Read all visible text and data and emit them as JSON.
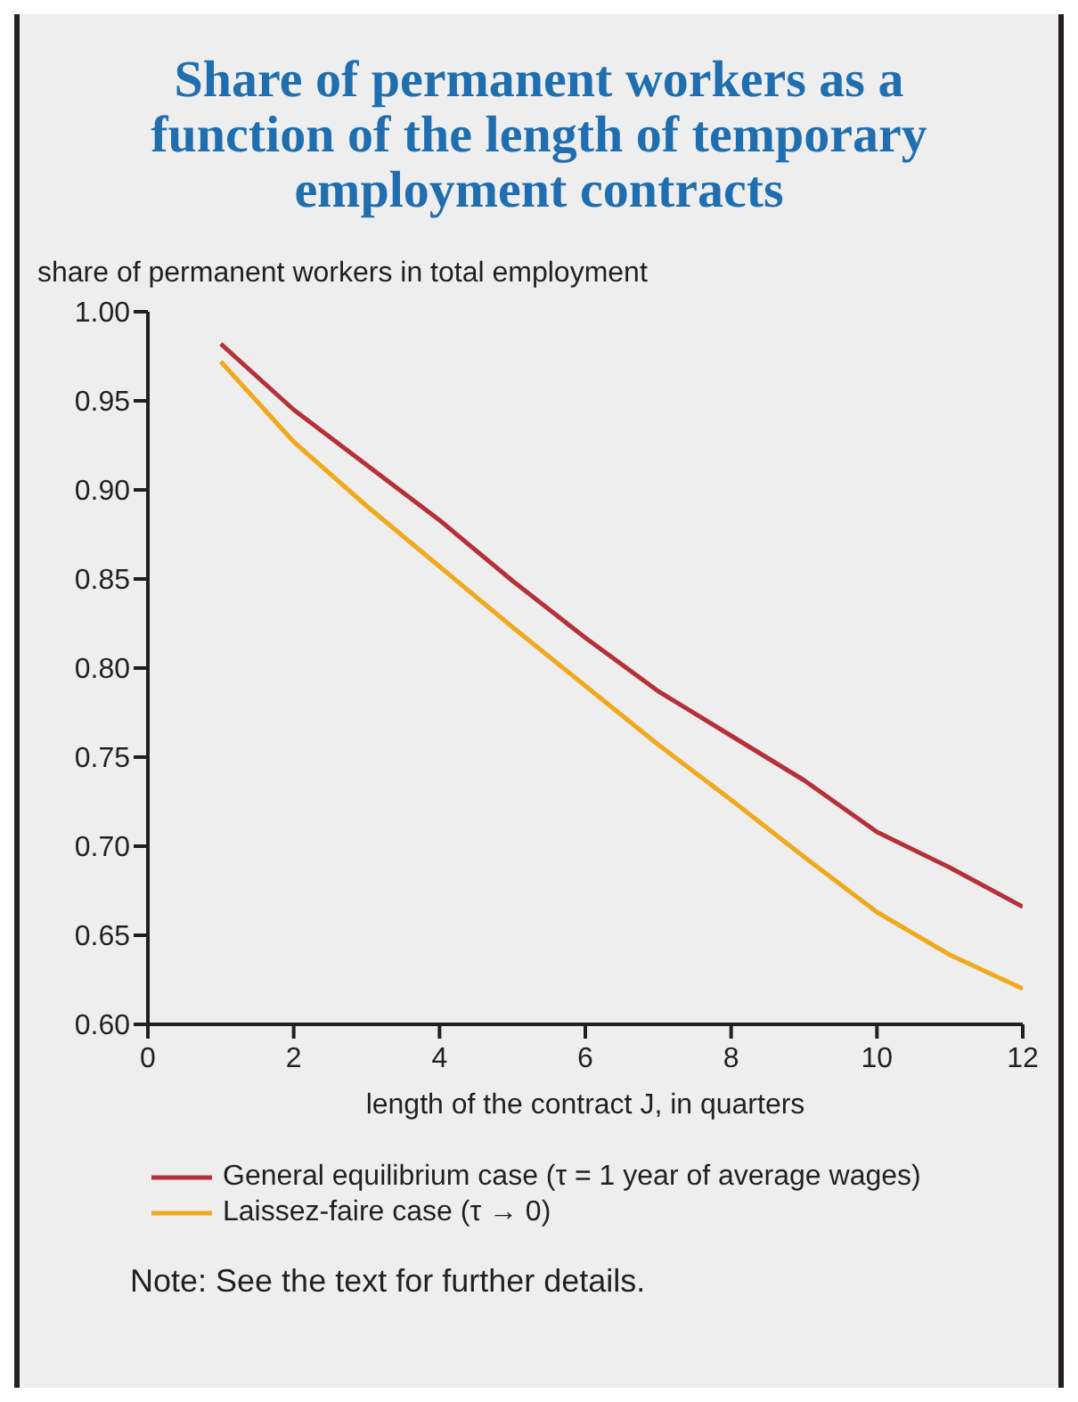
{
  "chart_data": {
    "type": "line",
    "title": "Share of permanent workers as a function of the length of temporary employment contracts",
    "ylabel": "share of permanent workers in total employment",
    "xlabel": "length of the contract J, in quarters",
    "x": [
      1,
      2,
      3,
      4,
      5,
      6,
      7,
      8,
      9,
      10,
      11,
      12
    ],
    "series": [
      {
        "name": "General equilibrium case (τ = 1 year of average wages)",
        "color": "#b5313a",
        "values": [
          0.982,
          0.945,
          0.914,
          0.883,
          0.849,
          0.817,
          0.787,
          0.762,
          0.737,
          0.708,
          0.688,
          0.666
        ]
      },
      {
        "name": "Laissez-faire case (τ → 0)",
        "color": "#f0a81c",
        "values": [
          0.972,
          0.927,
          0.891,
          0.857,
          0.823,
          0.79,
          0.757,
          0.726,
          0.694,
          0.663,
          0.639,
          0.62
        ]
      }
    ],
    "xlim": [
      0,
      12
    ],
    "xticks": [
      0,
      2,
      4,
      6,
      8,
      10,
      12
    ],
    "ylim": [
      0.6,
      1.0
    ],
    "yticks": [
      {
        "value": 0.6,
        "label": "0.60"
      },
      {
        "value": 0.65,
        "label": "0.65"
      },
      {
        "value": 0.7,
        "label": "0.70"
      },
      {
        "value": 0.75,
        "label": "0.75"
      },
      {
        "value": 0.8,
        "label": "0.80"
      },
      {
        "value": 0.85,
        "label": "0.85"
      },
      {
        "value": 0.9,
        "label": "0.90"
      },
      {
        "value": 0.95,
        "label": "0.95"
      },
      {
        "value": 1.0,
        "label": "1.00"
      }
    ],
    "grid": false,
    "legend": "bottom",
    "marker": "none",
    "line_style": "solid",
    "annotations": [
      "Note: See the text for further details."
    ]
  }
}
